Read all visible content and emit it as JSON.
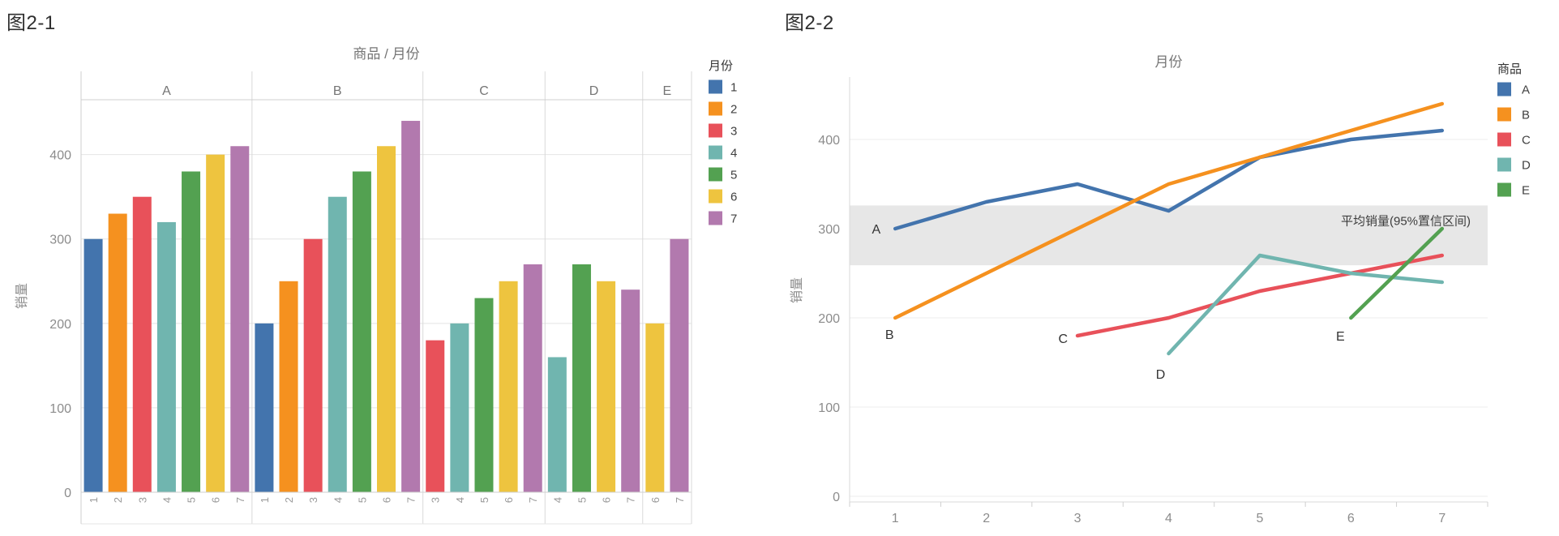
{
  "page": {
    "background": "#ffffff"
  },
  "palette": {
    "1": "#4374ad",
    "2": "#f5911f",
    "3": "#e8515a",
    "4": "#70b5af",
    "5": "#53a151",
    "6": "#eec43f",
    "7": "#b279ae"
  },
  "chart_data": [
    {
      "type": "bar",
      "figure_label": "图2-1",
      "title": "商品 / 月份",
      "ylabel": "销量",
      "ylim": [
        0,
        465
      ],
      "yticks": [
        0,
        100,
        200,
        300,
        400
      ],
      "legend": {
        "title": "月份",
        "entries": [
          "1",
          "2",
          "3",
          "4",
          "5",
          "6",
          "7"
        ]
      },
      "groups": [
        {
          "category": "A",
          "months": [
            "1",
            "2",
            "3",
            "4",
            "5",
            "6",
            "7"
          ],
          "values": [
            300,
            330,
            350,
            320,
            380,
            400,
            410
          ]
        },
        {
          "category": "B",
          "months": [
            "1",
            "2",
            "3",
            "4",
            "5",
            "6",
            "7"
          ],
          "values": [
            200,
            250,
            300,
            350,
            380,
            410,
            440
          ]
        },
        {
          "category": "C",
          "months": [
            "3",
            "4",
            "5",
            "6",
            "7"
          ],
          "values": [
            180,
            200,
            230,
            250,
            270
          ]
        },
        {
          "category": "D",
          "months": [
            "4",
            "5",
            "6",
            "7"
          ],
          "values": [
            160,
            270,
            250,
            240
          ]
        },
        {
          "category": "E",
          "months": [
            "6",
            "7"
          ],
          "values": [
            200,
            300
          ]
        }
      ]
    },
    {
      "type": "line",
      "figure_label": "图2-2",
      "title": "月份",
      "ylabel": "销量",
      "ylim": [
        0,
        470
      ],
      "yticks": [
        0,
        100,
        200,
        300,
        400
      ],
      "xticks": [
        "1",
        "2",
        "3",
        "4",
        "5",
        "6",
        "7"
      ],
      "legend": {
        "title": "商品",
        "entries": [
          "A",
          "B",
          "C",
          "D",
          "E"
        ]
      },
      "series": [
        {
          "name": "A",
          "months": [
            1,
            2,
            3,
            4,
            5,
            6,
            7
          ],
          "values": [
            300,
            330,
            350,
            320,
            380,
            400,
            410
          ],
          "color": "#4374ad"
        },
        {
          "name": "B",
          "months": [
            1,
            2,
            3,
            4,
            5,
            6,
            7
          ],
          "values": [
            200,
            250,
            300,
            350,
            380,
            410,
            440
          ],
          "color": "#f5911f"
        },
        {
          "name": "C",
          "months": [
            3,
            4,
            5,
            6,
            7
          ],
          "values": [
            180,
            200,
            230,
            250,
            270
          ],
          "color": "#e8515a"
        },
        {
          "name": "D",
          "months": [
            4,
            5,
            6,
            7
          ],
          "values": [
            160,
            270,
            250,
            240
          ],
          "color": "#70b5af"
        },
        {
          "name": "E",
          "months": [
            6,
            7
          ],
          "values": [
            200,
            300
          ],
          "color": "#53a151"
        }
      ],
      "band": {
        "label": "平均销量(95%置信区间)",
        "from": 259,
        "to": 326,
        "color": "#e7e7e7"
      }
    }
  ]
}
